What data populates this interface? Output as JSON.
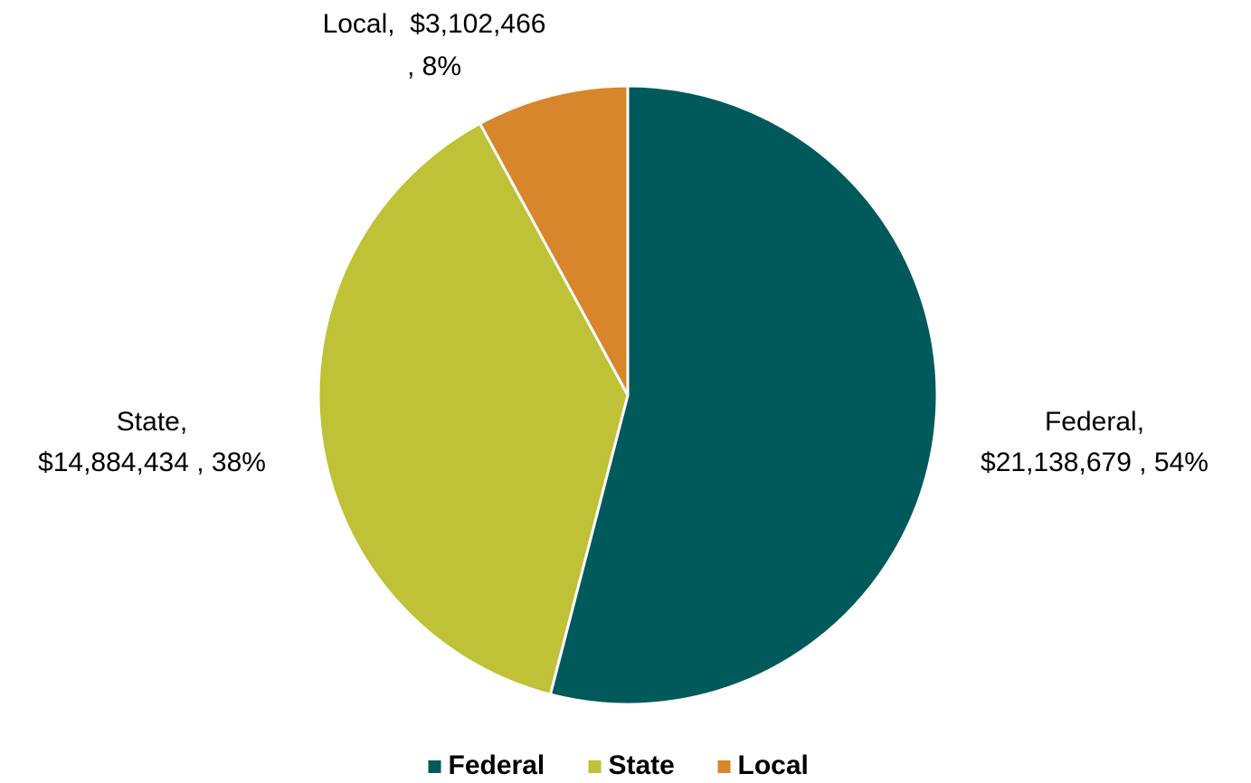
{
  "chart_data": {
    "type": "pie",
    "categories": [
      "Federal",
      "State",
      "Local"
    ],
    "values": [
      21138679,
      14884434,
      3102466
    ],
    "value_labels": [
      [
        "Federal,",
        "$21,138,679 , 54%"
      ],
      [
        "State,",
        "$14,884,434 , 38%"
      ],
      [
        "Local,  $3,102,466",
        ", 8%"
      ]
    ],
    "colors": [
      "#005a5b",
      "#bfc136",
      "#d7862b"
    ],
    "legend": "bottom"
  }
}
